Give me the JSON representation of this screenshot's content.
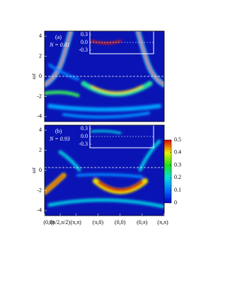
{
  "chart_data": [
    {
      "type": "heatmap",
      "panel_label": "(a)",
      "annotation": "N = 0.81",
      "ylabel": "ωt",
      "ylim": [
        -4.5,
        4.5
      ],
      "yticks": [
        -4,
        -2,
        0,
        2,
        4
      ],
      "inset_yticks": [
        -0.3,
        {
          "value": 0,
          "label": "0.0"
        },
        0.3
      ]
    },
    {
      "type": "heatmap",
      "panel_label": "(b)",
      "annotation": "N = 0.93",
      "ylabel": "ωt",
      "ylim": [
        -4.5,
        4.5
      ],
      "yticks": [
        -4,
        -2,
        0,
        2,
        4
      ],
      "inset_yticks": [
        -0.3,
        {
          "value": 0,
          "label": "0.0"
        },
        0.3
      ],
      "categories": [
        "(0,0)",
        "(π/2,π/2)",
        "(π,π)",
        "(π,0)",
        "(0,0)",
        "(0,π)",
        "(π,π)"
      ],
      "colorbar": {
        "lim": [
          0,
          0.5
        ],
        "ticks": [
          0,
          0.1,
          0.2,
          0.3,
          0.4,
          0.5
        ]
      }
    }
  ]
}
